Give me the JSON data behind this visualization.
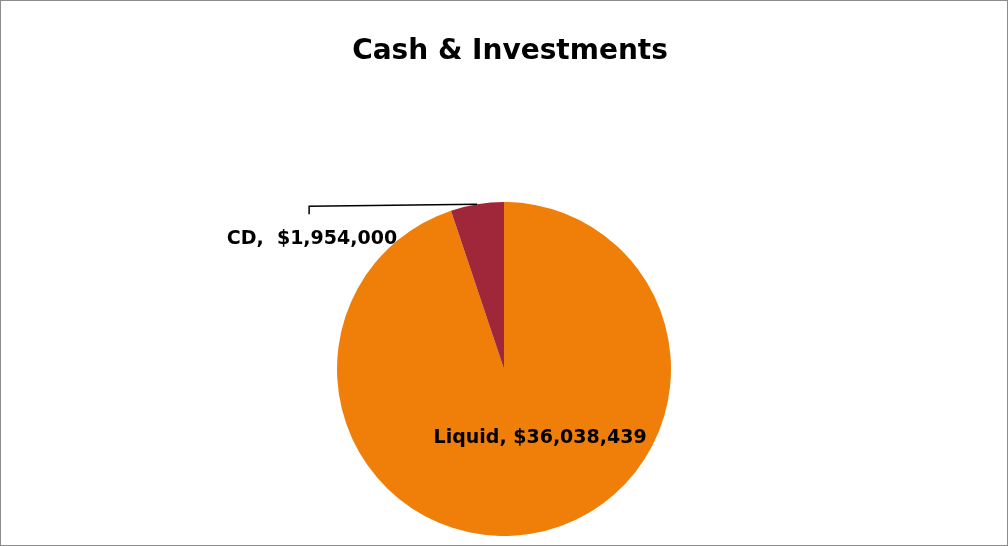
{
  "chart_data": {
    "type": "pie",
    "title": "Cash & Investments",
    "categories": [
      "Liquid",
      "CD"
    ],
    "values": [
      36038439,
      1954000
    ],
    "colors": [
      "#f07f0a",
      "#a0263a"
    ],
    "value_labels": [
      "$36,038,439",
      "$1,954,000"
    ],
    "legend": false
  }
}
